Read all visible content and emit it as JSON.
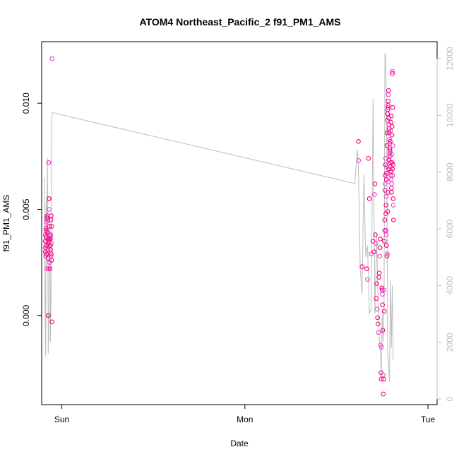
{
  "chart_data": {
    "type": "scatter",
    "title": "ATOM4 Northeast_Pacific_2 f91_PM1_AMS",
    "xlabel": "Date",
    "ylabel": "f91_PM1_AMS",
    "x_ticks": [
      {
        "pos": 0.5,
        "label": "Sun"
      },
      {
        "pos": 1.5,
        "label": "Mon"
      },
      {
        "pos": 2.5,
        "label": "Tue"
      }
    ],
    "xlim": [
      0.39,
      2.55
    ],
    "y_left": {
      "lim": [
        -0.0042,
        0.0129
      ],
      "ticks": [
        0.0,
        0.005,
        0.01
      ],
      "tick_labels": [
        "0.000",
        "0.005",
        "0.010"
      ]
    },
    "y_right": {
      "lim": [
        -200,
        12600
      ],
      "ticks": [
        0,
        2000,
        4000,
        6000,
        8000,
        10000,
        12000
      ],
      "tick_labels": [
        "0",
        "2000",
        "4000",
        "6000",
        "8000",
        "10000",
        "12000"
      ],
      "color": "#bdbdbd"
    },
    "colors": {
      "point_light": "#e64ad2",
      "point_dark": "#ff007f",
      "line": "#bdbdbd"
    },
    "series": [
      {
        "kind": "points",
        "axis": "left",
        "points": [
          [
            0.41,
            0.0038
          ],
          [
            0.41,
            0.0035
          ],
          [
            0.411,
            0.0032
          ],
          [
            0.412,
            0.0028
          ],
          [
            0.413,
            0.0041
          ],
          [
            0.414,
            0.0037
          ],
          [
            0.415,
            0.0044
          ],
          [
            0.416,
            0.0033
          ],
          [
            0.417,
            0.0029
          ],
          [
            0.418,
            0.0022
          ],
          [
            0.419,
            0.0046
          ],
          [
            0.42,
            0.0047
          ],
          [
            0.421,
            0.0036
          ],
          [
            0.422,
            0.0039
          ],
          [
            0.423,
            0.0045
          ],
          [
            0.424,
            0.0031
          ],
          [
            0.425,
            0.0027
          ],
          [
            0.426,
            0.0034
          ],
          [
            0.427,
            0.0022
          ],
          [
            0.428,
            0.0035
          ],
          [
            0.428,
            0.0072
          ],
          [
            0.429,
            0.0072
          ],
          [
            0.43,
            0.0055
          ],
          [
            0.43,
            0.0055
          ],
          [
            0.431,
            0.005
          ],
          [
            0.432,
            0.0042
          ],
          [
            0.433,
            0.0038
          ],
          [
            0.434,
            0.0025
          ],
          [
            0.435,
            0.0022
          ],
          [
            0.436,
            0.0033
          ],
          [
            0.437,
            0.0037
          ],
          [
            0.438,
            0.0036
          ],
          [
            0.439,
            0.0031
          ],
          [
            0.44,
            0.0028
          ],
          [
            0.441,
            0.0045
          ],
          [
            0.442,
            0.0047
          ],
          [
            0.443,
            0.0034
          ],
          [
            0.444,
            0.0026
          ],
          [
            0.445,
            0.0042
          ],
          [
            0.426,
            0.0
          ],
          [
            0.427,
            0.0
          ],
          [
            0.446,
            -0.0003
          ],
          [
            0.447,
            0.0121
          ],
          [
            0.41,
            0.003
          ],
          [
            0.416,
            0.004
          ],
          [
            0.42,
            0.0045
          ],
          [
            0.43,
            0.0036
          ],
          [
            0.437,
            0.0033
          ],
          [
            0.44,
            0.0038
          ],
          [
            0.442,
            0.0029
          ],
          [
            2.12,
            0.0082
          ],
          [
            2.121,
            0.0073
          ],
          [
            2.14,
            0.0023
          ],
          [
            2.165,
            0.0022
          ],
          [
            2.17,
            0.0017
          ],
          [
            2.175,
            0.0074
          ],
          [
            2.18,
            0.0055
          ],
          [
            2.19,
            0.0029
          ],
          [
            2.2,
            0.0035
          ],
          [
            2.205,
            0.003
          ],
          [
            2.208,
            0.0057
          ],
          [
            2.21,
            0.0062
          ],
          [
            2.212,
            0.0038
          ],
          [
            2.215,
            0.0034
          ],
          [
            2.218,
            0.0008
          ],
          [
            2.22,
            0.0015
          ],
          [
            2.222,
            0.0003
          ],
          [
            2.225,
            -0.0001
          ],
          [
            2.227,
            -0.0004
          ],
          [
            2.23,
            -0.0008
          ],
          [
            2.232,
            0.0018
          ],
          [
            2.234,
            0.002
          ],
          [
            2.236,
            0.0028
          ],
          [
            2.238,
            0.0032
          ],
          [
            2.24,
            0.0036
          ],
          [
            2.241,
            -0.0014
          ],
          [
            2.243,
            -0.0027
          ],
          [
            2.245,
            -0.003
          ],
          [
            2.246,
            -0.0015
          ],
          [
            2.248,
            0.0013
          ],
          [
            2.25,
            0.0012
          ],
          [
            2.251,
            0.001
          ],
          [
            2.252,
            0.0005
          ],
          [
            2.253,
            -0.0007
          ],
          [
            2.255,
            -0.0028
          ],
          [
            2.256,
            -0.0037
          ],
          [
            2.258,
            -0.003
          ],
          [
            2.26,
            0.0012
          ],
          [
            2.261,
            0.0002
          ],
          [
            2.262,
            0.0035
          ],
          [
            2.263,
            0.004
          ],
          [
            2.264,
            0.0045
          ],
          [
            2.265,
            0.0059
          ],
          [
            2.266,
            0.0062
          ],
          [
            2.267,
            0.0066
          ],
          [
            2.268,
            0.0071
          ],
          [
            2.269,
            0.0074
          ],
          [
            2.27,
            0.0048
          ],
          [
            2.271,
            0.0052
          ],
          [
            2.272,
            0.0056
          ],
          [
            2.273,
            0.0064
          ],
          [
            2.274,
            0.0067
          ],
          [
            2.275,
            0.007
          ],
          [
            2.276,
            0.008
          ],
          [
            2.277,
            0.0086
          ],
          [
            2.278,
            0.0092
          ],
          [
            2.279,
            0.0095
          ],
          [
            2.28,
            0.0097
          ],
          [
            2.281,
            0.0098
          ],
          [
            2.282,
            0.0099
          ],
          [
            2.283,
            0.0101
          ],
          [
            2.284,
            0.0104
          ],
          [
            2.285,
            0.0106
          ],
          [
            2.286,
            0.0093
          ],
          [
            2.287,
            0.009
          ],
          [
            2.288,
            0.0088
          ],
          [
            2.289,
            0.0086
          ],
          [
            2.29,
            0.0083
          ],
          [
            2.291,
            0.0081
          ],
          [
            2.292,
            0.0079
          ],
          [
            2.293,
            0.0077
          ],
          [
            2.294,
            0.0075
          ],
          [
            2.295,
            0.0072
          ],
          [
            2.296,
            0.007
          ],
          [
            2.297,
            0.0068
          ],
          [
            2.298,
            0.0066
          ],
          [
            2.299,
            0.0064
          ],
          [
            2.3,
            0.006
          ],
          [
            2.301,
            0.0058
          ],
          [
            2.302,
            0.0062
          ],
          [
            2.303,
            0.0085
          ],
          [
            2.304,
            0.0089
          ],
          [
            2.305,
            0.0115
          ],
          [
            2.306,
            0.0114
          ],
          [
            2.307,
            0.0098
          ],
          [
            2.308,
            0.008
          ],
          [
            2.309,
            0.0071
          ],
          [
            2.31,
            0.0055
          ],
          [
            2.311,
            0.0052
          ],
          [
            2.312,
            0.0045
          ],
          [
            2.27,
            0.004
          ],
          [
            2.272,
            0.0038
          ],
          [
            2.274,
            0.0033
          ],
          [
            2.276,
            0.0028
          ],
          [
            2.278,
            0.0029
          ],
          [
            2.28,
            0.0049
          ],
          [
            2.282,
            0.0058
          ],
          [
            2.284,
            0.0063
          ],
          [
            2.286,
            0.0069
          ],
          [
            2.288,
            0.0073
          ],
          [
            2.29,
            0.0076
          ],
          [
            2.292,
            0.0078
          ],
          [
            2.294,
            0.0082
          ],
          [
            2.296,
            0.0087
          ],
          [
            2.298,
            0.0091
          ],
          [
            2.3,
            0.0094
          ],
          [
            2.302,
            0.0076
          ],
          [
            2.304,
            0.0072
          ],
          [
            2.306,
            0.0069
          ],
          [
            2.308,
            0.0066
          ]
        ]
      },
      {
        "kind": "line",
        "axis": "right",
        "points": [
          [
            0.405,
            7800
          ],
          [
            0.41,
            2000
          ],
          [
            0.412,
            1500
          ],
          [
            0.414,
            7000
          ],
          [
            0.416,
            4500
          ],
          [
            0.418,
            6800
          ],
          [
            0.42,
            7400
          ],
          [
            0.422,
            8500
          ],
          [
            0.424,
            6000
          ],
          [
            0.426,
            1600
          ],
          [
            0.428,
            2200
          ],
          [
            0.43,
            3500
          ],
          [
            0.432,
            5000
          ],
          [
            0.434,
            6500
          ],
          [
            0.436,
            6000
          ],
          [
            0.438,
            2000
          ],
          [
            0.44,
            3000
          ],
          [
            0.442,
            4500
          ],
          [
            0.444,
            6500
          ],
          [
            0.446,
            10100
          ],
          [
            2.1,
            7600
          ],
          [
            2.105,
            8000
          ],
          [
            2.11,
            8400
          ],
          [
            2.115,
            8800
          ],
          [
            2.12,
            8200
          ],
          [
            2.125,
            6500
          ],
          [
            2.13,
            4600
          ],
          [
            2.14,
            3700
          ],
          [
            2.15,
            7900
          ],
          [
            2.16,
            5000
          ],
          [
            2.17,
            5400
          ],
          [
            2.18,
            3000
          ],
          [
            2.19,
            3200
          ],
          [
            2.2,
            10600
          ],
          [
            2.21,
            3000
          ],
          [
            2.22,
            5800
          ],
          [
            2.23,
            2600
          ],
          [
            2.24,
            1600
          ],
          [
            2.245,
            800
          ],
          [
            2.25,
            3000
          ],
          [
            2.255,
            2000
          ],
          [
            2.26,
            3200
          ],
          [
            2.265,
            12200
          ],
          [
            2.27,
            12000
          ],
          [
            2.275,
            8800
          ],
          [
            2.28,
            1600
          ],
          [
            2.285,
            1200
          ],
          [
            2.29,
            600
          ],
          [
            2.295,
            4200
          ],
          [
            2.3,
            1800
          ],
          [
            2.305,
            4000
          ],
          [
            2.31,
            1400
          ]
        ]
      }
    ]
  }
}
